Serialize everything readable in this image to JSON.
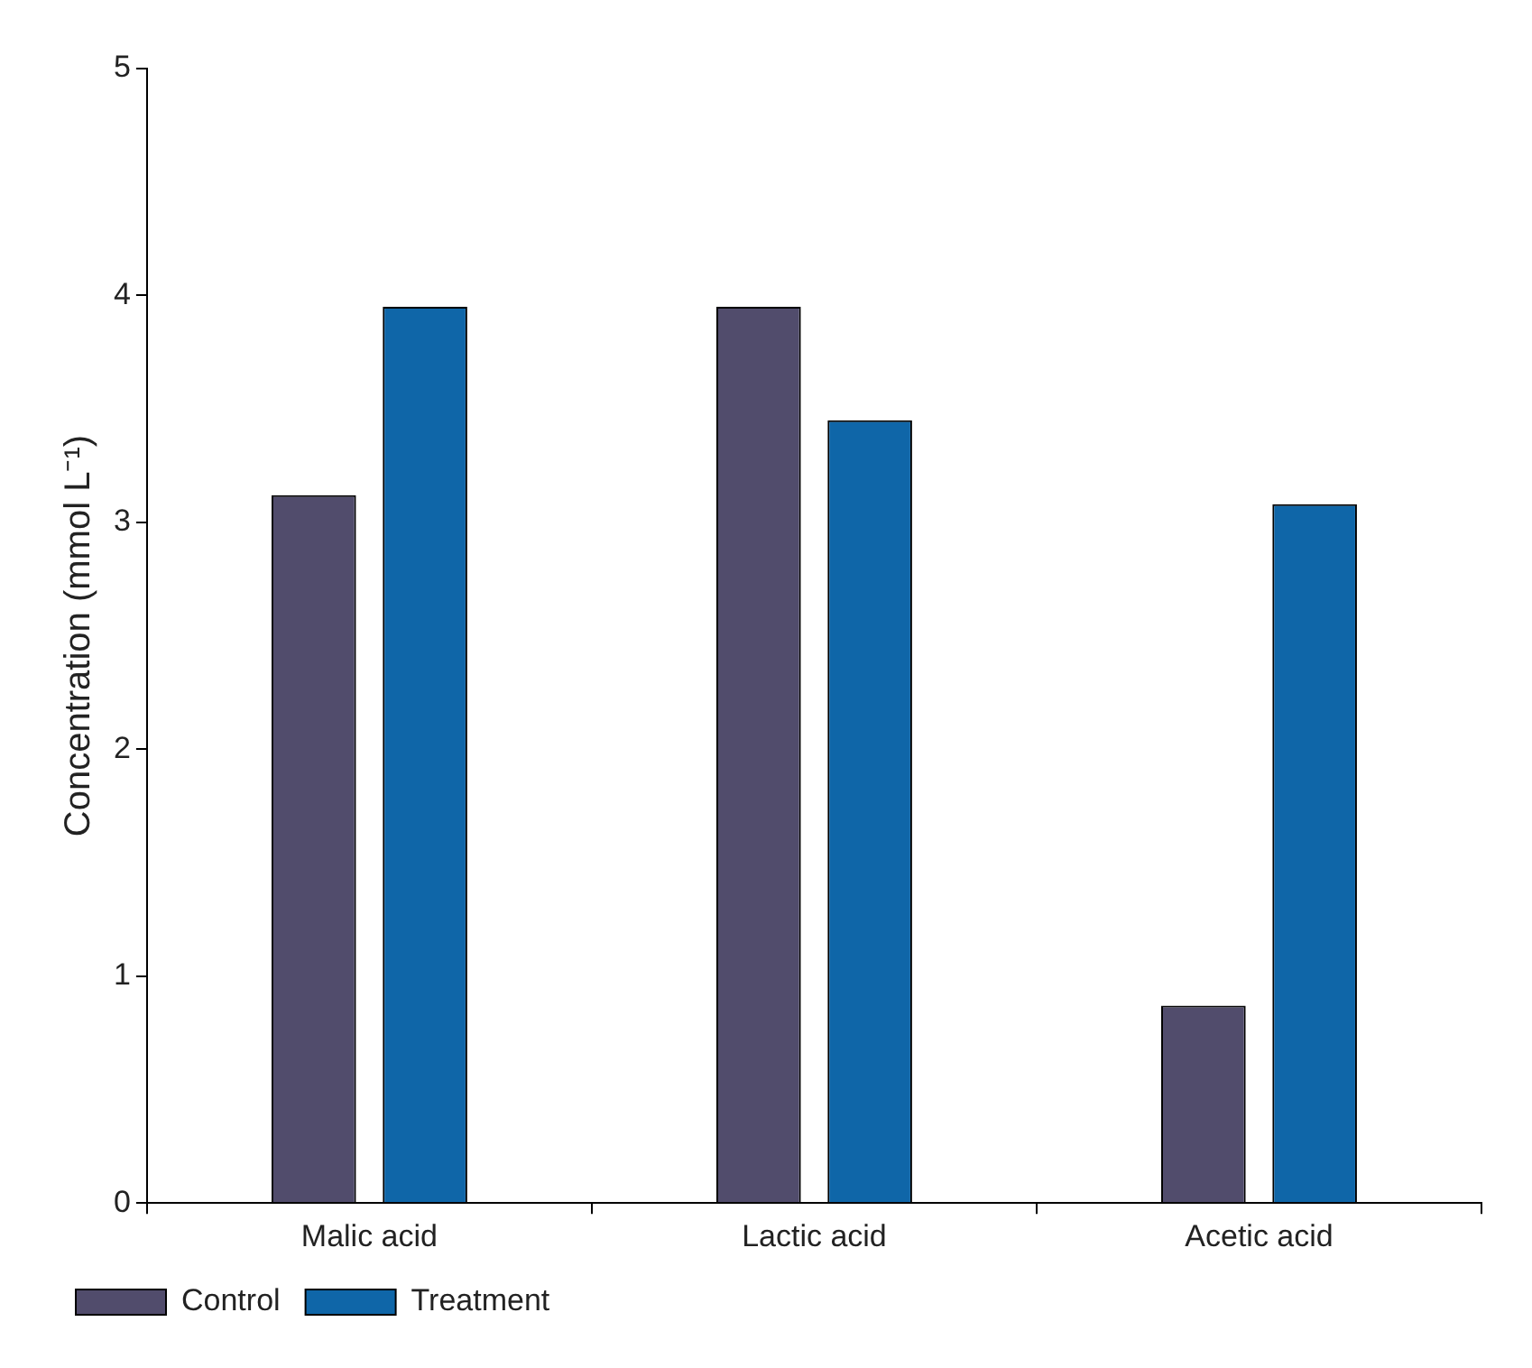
{
  "chart_data": {
    "type": "bar",
    "ylabel": "Concentration (mmol L⁻¹)",
    "categories": [
      "Malic acid",
      "Lactic acid",
      "Acetic acid"
    ],
    "series": [
      {
        "name": "Control",
        "color": "#514c6c",
        "values": [
          3.12,
          3.95,
          0.87
        ]
      },
      {
        "name": "Treatment",
        "color": "#0f66a8",
        "values": [
          3.95,
          3.45,
          3.08
        ]
      }
    ],
    "ylim": [
      0,
      5
    ],
    "yticks": [
      0,
      1,
      2,
      3,
      4,
      5
    ],
    "grid": false,
    "legend": "bottom left"
  }
}
